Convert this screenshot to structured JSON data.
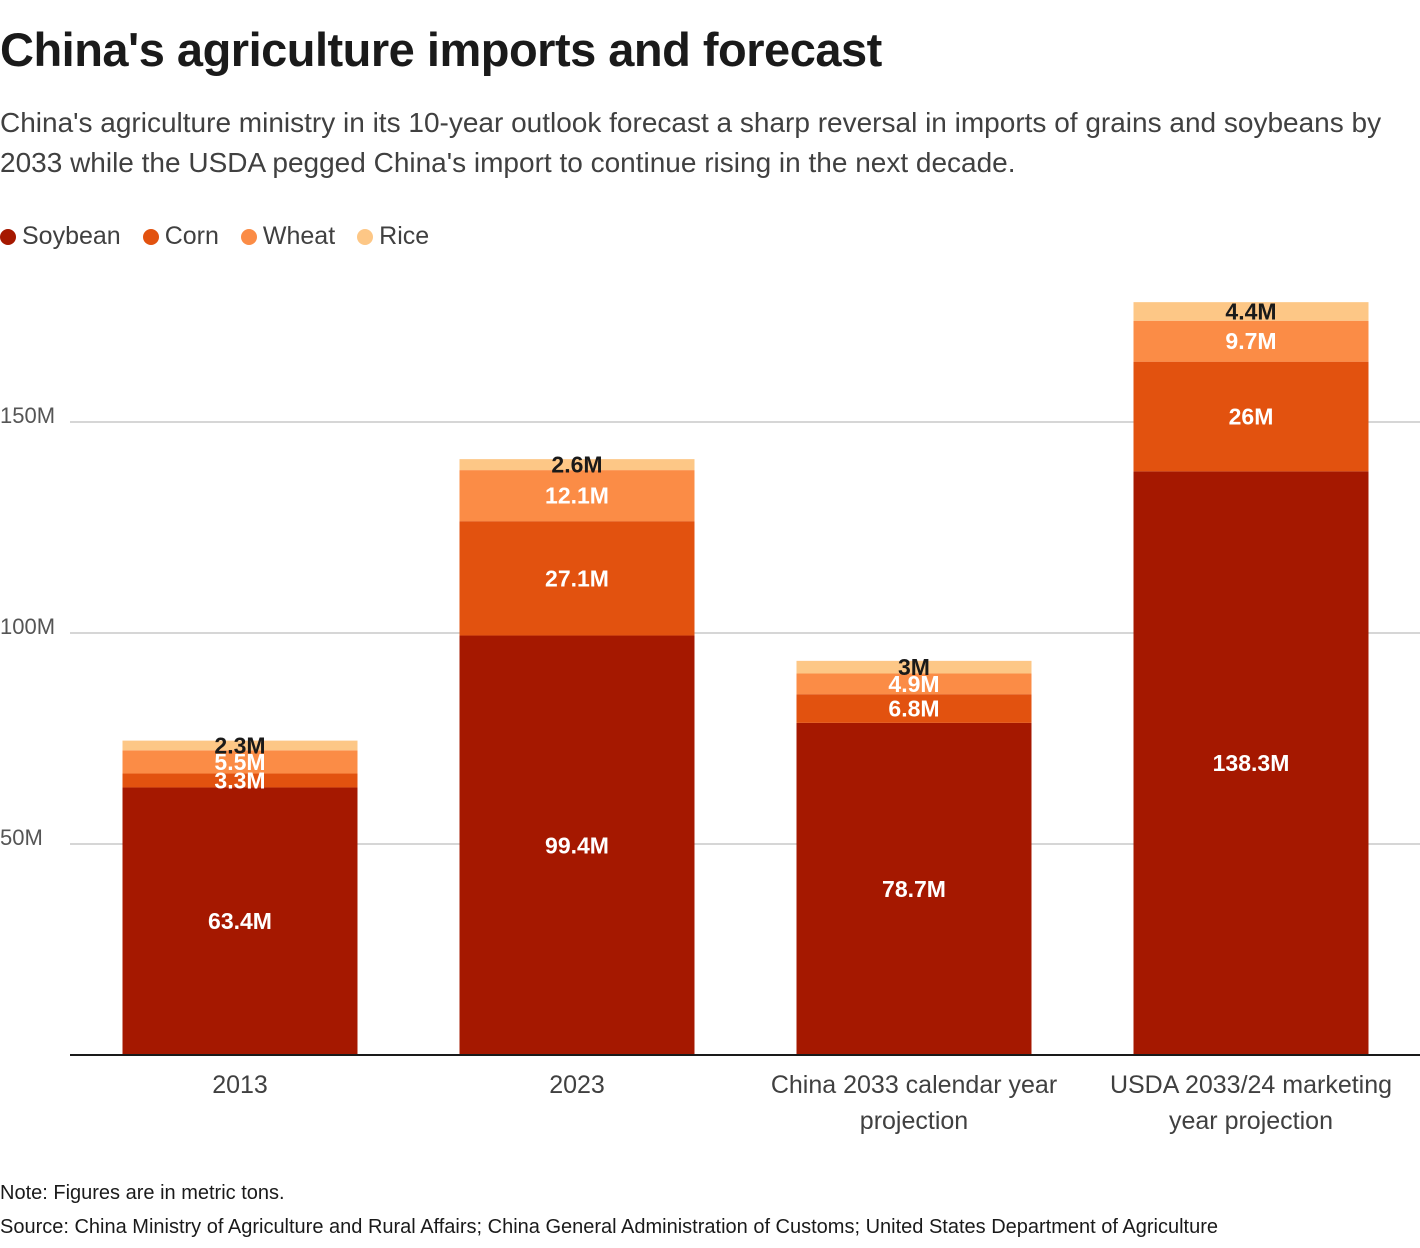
{
  "title": "China's agriculture imports and forecast",
  "subtitle": "China's agriculture ministry in its 10-year outlook forecast a sharp reversal in imports of grains and soybeans by 2033 while the USDA pegged China's import to continue rising in the next decade.",
  "note": "Note: Figures are in metric tons.",
  "source": "Source: China Ministry of Agriculture and Rural Affairs; China General Administration of Customs; United States Department of Agriculture",
  "colors": {
    "soybean": "#a51800",
    "corn": "#e2520f",
    "wheat": "#fb8c46",
    "rice": "#fdc786",
    "grid": "#c8c8c8",
    "axis": "#1a1a1a",
    "label_light": "#ffffff",
    "label_dark": "#1a1a1a"
  },
  "chart_data": {
    "type": "bar",
    "stacked": true,
    "categories": [
      [
        "2013"
      ],
      [
        "2023"
      ],
      [
        "China 2033 calendar year",
        "projection"
      ],
      [
        "USDA 2033/24 marketing",
        "year projection"
      ]
    ],
    "series": [
      {
        "name": "Soybean",
        "color_key": "soybean",
        "values": [
          63.4,
          99.4,
          78.7,
          138.3
        ],
        "labels": [
          "63.4M",
          "99.4M",
          "78.7M",
          "138.3M"
        ],
        "label_color": "light"
      },
      {
        "name": "Corn",
        "color_key": "corn",
        "values": [
          3.3,
          27.1,
          6.8,
          26
        ],
        "labels": [
          "3.3M",
          "27.1M",
          "6.8M",
          "26M"
        ],
        "label_color": "light"
      },
      {
        "name": "Wheat",
        "color_key": "wheat",
        "values": [
          5.5,
          12.1,
          4.9,
          9.7
        ],
        "labels": [
          "5.5M",
          "12.1M",
          "4.9M",
          "9.7M"
        ],
        "label_color": "light"
      },
      {
        "name": "Rice",
        "color_key": "rice",
        "values": [
          2.3,
          2.6,
          3,
          4.4
        ],
        "labels": [
          "2.3M",
          "2.6M",
          "3M",
          "4.4M"
        ],
        "label_color": "dark"
      }
    ],
    "y_ticks": [
      50,
      100,
      150
    ],
    "y_tick_labels": [
      "50M",
      "100M",
      "150M"
    ],
    "ylim": [
      0,
      180
    ],
    "grid": true,
    "legend_position": "top-left",
    "xlabel": "",
    "ylabel": ""
  }
}
